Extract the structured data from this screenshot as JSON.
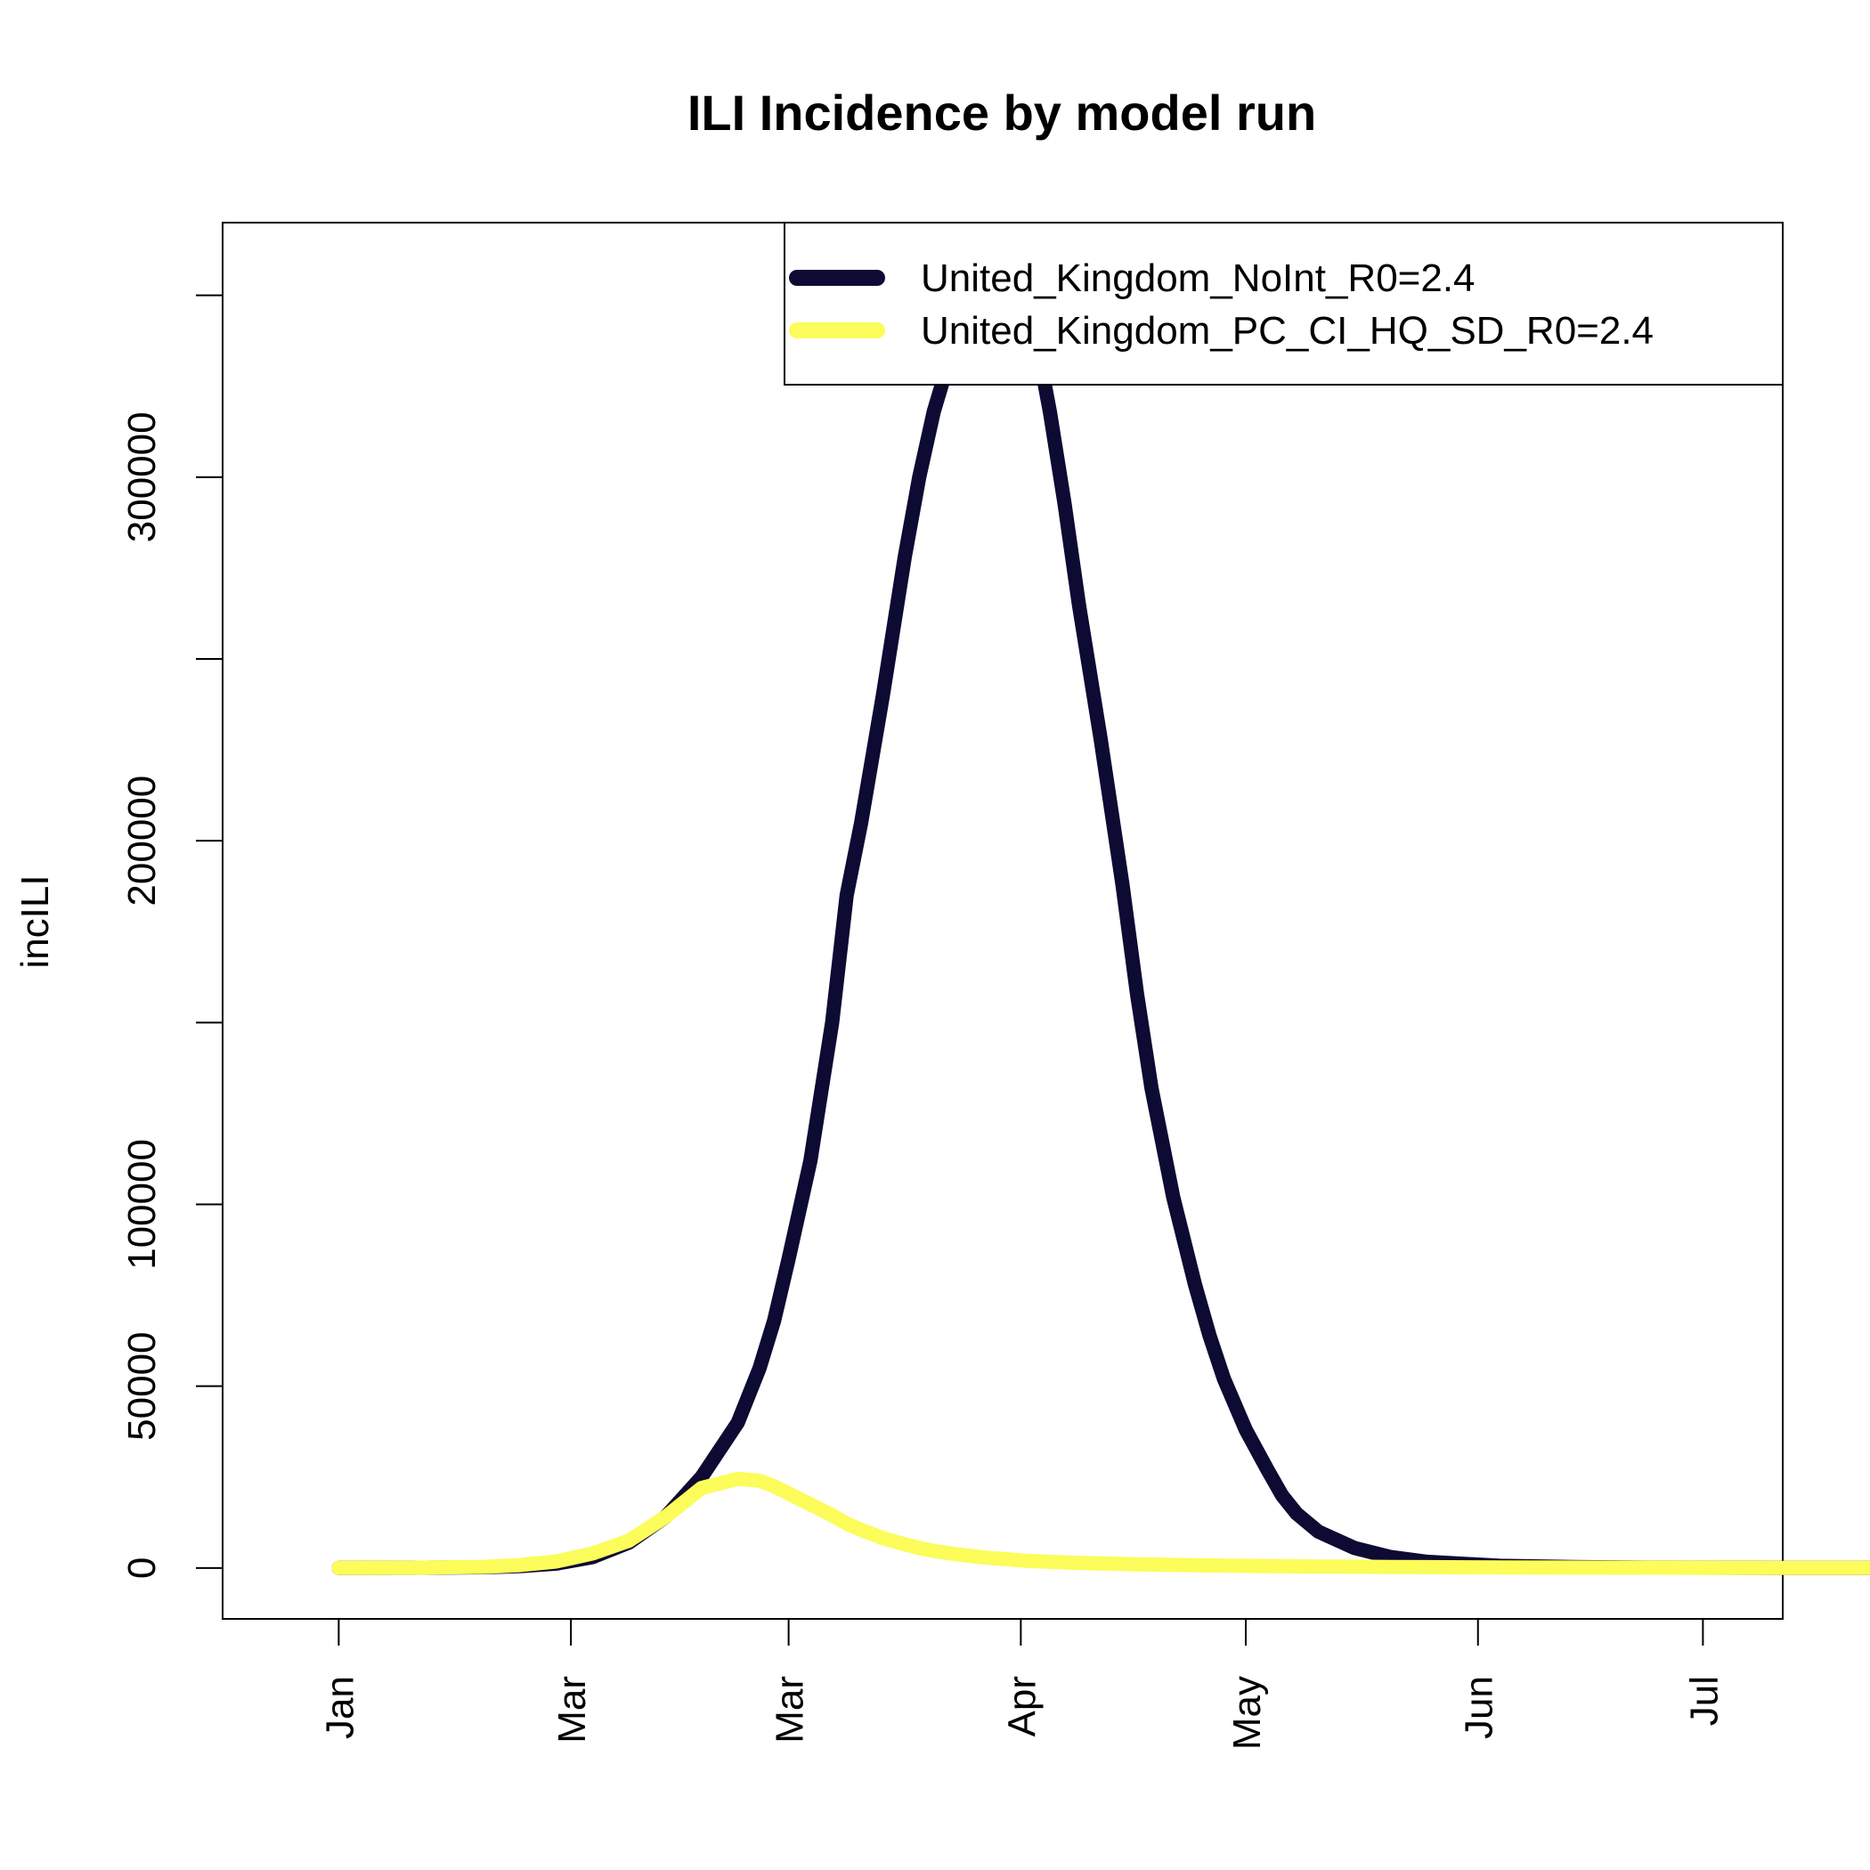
{
  "chart_data": {
    "type": "line",
    "title": "ILI Incidence by model run",
    "xlabel": "",
    "ylabel": "incILI",
    "y_ticks": [
      0,
      50000,
      100000,
      150000,
      200000,
      250000,
      300000,
      350000
    ],
    "y_tick_labels": [
      "0",
      "50000",
      "100000",
      "",
      "200000",
      "",
      "300000",
      ""
    ],
    "ylim": [
      -14000,
      370000
    ],
    "x_day_range": [
      -16,
      199
    ],
    "x_ticks": [
      0,
      32,
      62,
      94,
      125,
      157,
      188
    ],
    "x_tick_labels": [
      "Jan",
      "Mar",
      "Mar",
      "Apr",
      "May",
      "Jun",
      "Jul"
    ],
    "legend_position": "top-right",
    "legend": [
      {
        "label": "United_Kingdom_NoInt_R0=2.4",
        "color": "#0d0a33"
      },
      {
        "label": "United_Kingdom_PC_CI_HQ_SD_R0=2.4",
        "color": "#fcfc5a"
      }
    ],
    "grid": false,
    "x": [
      0,
      10,
      20,
      25,
      30,
      35,
      40,
      45,
      50,
      55,
      58,
      60,
      62,
      65,
      68,
      70,
      72,
      75,
      78,
      80,
      82,
      85,
      88,
      90,
      92,
      94,
      95,
      98,
      100,
      102,
      105,
      108,
      110,
      112,
      115,
      118,
      120,
      122,
      125,
      128,
      130,
      132,
      135,
      140,
      145,
      150,
      160,
      170,
      180,
      200,
      215
    ],
    "series": [
      {
        "name": "United_Kingdom_NoInt_R0=2.4",
        "color": "#0d0a33",
        "values": [
          0,
          50,
          200,
          500,
          1200,
          3000,
          7000,
          14000,
          25000,
          40000,
          55000,
          68000,
          85000,
          112000,
          150000,
          185000,
          205000,
          240000,
          278000,
          300000,
          318000,
          338000,
          352000,
          358000,
          360000,
          358000,
          350000,
          318000,
          293000,
          265000,
          228000,
          188000,
          158000,
          132000,
          102000,
          78000,
          64000,
          52000,
          38000,
          27000,
          20000,
          15000,
          10000,
          5500,
          3000,
          1700,
          600,
          250,
          100,
          20,
          0
        ]
      },
      {
        "name": "United_Kingdom_PC_CI_HQ_SD_R0=2.4",
        "color": "#fcfc5a",
        "values": [
          0,
          50,
          300,
          800,
          1800,
          4000,
          7500,
          14000,
          22000,
          24500,
          24000,
          22500,
          20500,
          17500,
          14500,
          12200,
          10500,
          8200,
          6500,
          5500,
          4700,
          3800,
          3100,
          2700,
          2400,
          2100,
          1950,
          1700,
          1550,
          1400,
          1250,
          1100,
          1000,
          930,
          850,
          760,
          700,
          650,
          580,
          520,
          480,
          450,
          400,
          340,
          280,
          230,
          160,
          110,
          70,
          20,
          0
        ]
      }
    ]
  }
}
